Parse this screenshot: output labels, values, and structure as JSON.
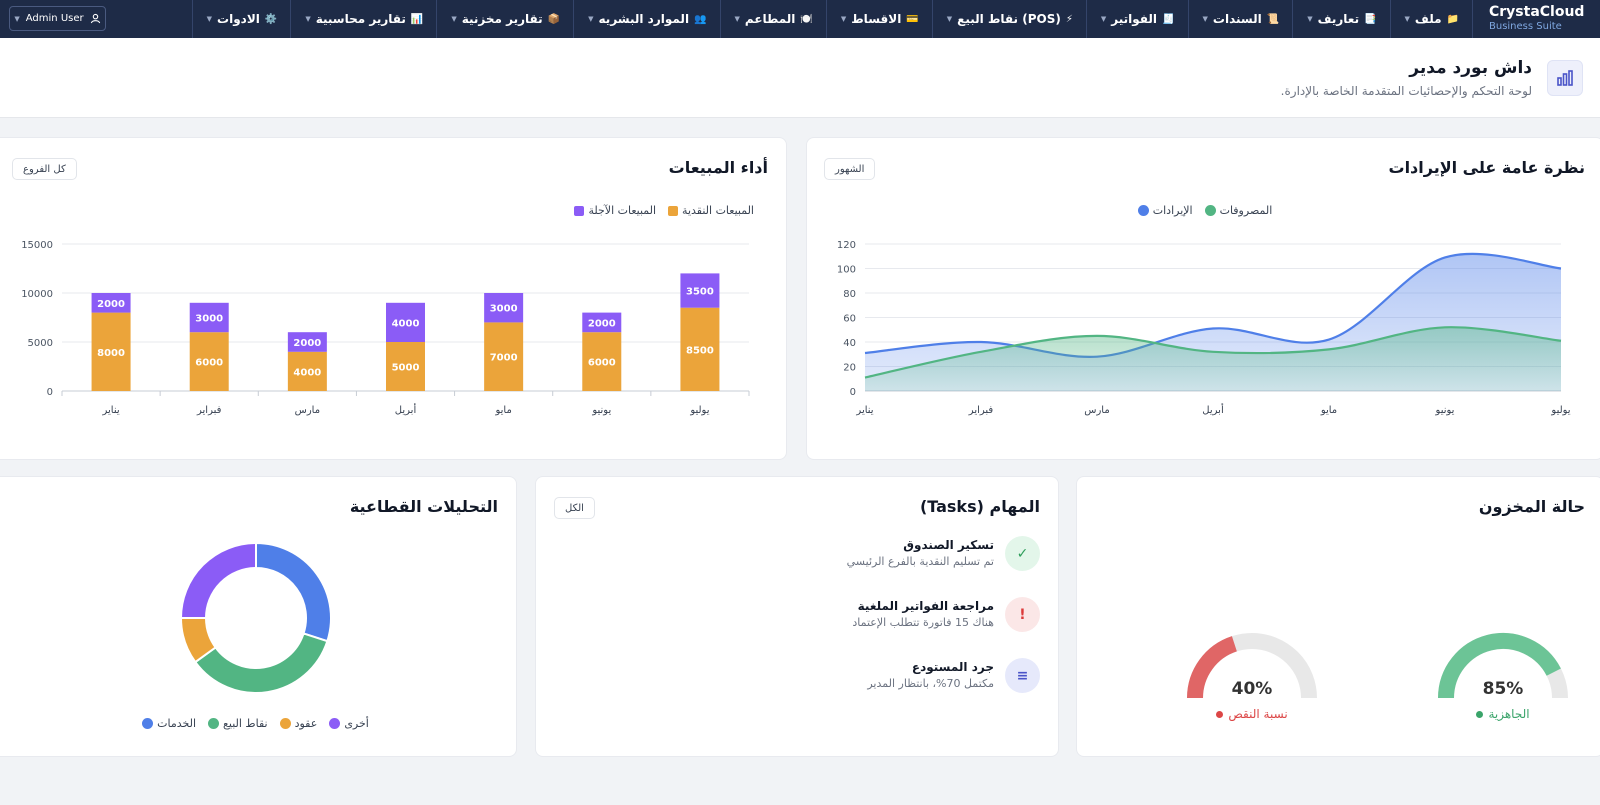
{
  "brand": {
    "name": "CrystaCloud",
    "sub": "Business Suite"
  },
  "menu": [
    {
      "label": "ملف",
      "icon": "📁",
      "icon_name": "folder-icon"
    },
    {
      "label": "تعاريف",
      "icon": "📑",
      "icon_name": "definitions-icon"
    },
    {
      "label": "السندات",
      "icon": "📜",
      "icon_name": "vouchers-icon"
    },
    {
      "label": "الفواتير",
      "icon": "🧾",
      "icon_name": "invoices-icon"
    },
    {
      "label": "نقاط البيع (POS)",
      "icon": "⚡",
      "icon_name": "pos-icon"
    },
    {
      "label": "الاقساط",
      "icon": "💳",
      "icon_name": "installments-icon"
    },
    {
      "label": "المطاعم",
      "icon": "🍽️",
      "icon_name": "restaurants-icon"
    },
    {
      "label": "الموارد البشريه",
      "icon": "👥",
      "icon_name": "hr-icon"
    },
    {
      "label": "تقارير مخزنية",
      "icon": "📦",
      "icon_name": "inventory-reports-icon"
    },
    {
      "label": "تقارير محاسبية",
      "icon": "📊",
      "icon_name": "accounting-reports-icon"
    },
    {
      "label": "الادوات",
      "icon": "⚙️",
      "icon_name": "tools-icon"
    }
  ],
  "user": {
    "label": "Admin User"
  },
  "header": {
    "title": "داش بورد مدير",
    "subtitle": "لوحة التحكم والإحصائيات المتقدمة الخاصة بالإدارة."
  },
  "revenue_card": {
    "title": "نظرة عامة على الإيرادات",
    "filter": "الشهور",
    "legend": [
      {
        "label": "الإيرادات",
        "color": "#4f7fe8"
      },
      {
        "label": "المصروفات",
        "color": "#52b583"
      }
    ]
  },
  "sales_card": {
    "title": "أداء المبيعات",
    "filter": "كل الفروع",
    "legend": [
      {
        "label": "المبيعات الآجلة",
        "color": "#8b5cf6"
      },
      {
        "label": "المبيعات النقدية",
        "color": "#eba43a"
      }
    ]
  },
  "inventory_card": {
    "title": "حالة المخزون",
    "gauges": [
      {
        "value": 85,
        "display": "85%",
        "label": "الجاهزية",
        "color": "#6cc496",
        "label_color": "#3aa46a"
      },
      {
        "value": 40,
        "display": "40%",
        "label": "نسبة النقص",
        "color": "#e06666",
        "label_color": "#dc4646"
      }
    ]
  },
  "tasks_card": {
    "title": "المهام (Tasks)",
    "filter": "الكل",
    "tasks": [
      {
        "title": "تسكير الصندوق",
        "desc": "تم تسليم النقدية بالفرع الرئيسي",
        "icon": "✓",
        "icon_name": "check-icon",
        "bg": "#e3f6ea",
        "fg": "#2f9e5b"
      },
      {
        "title": "مراجعة الفواتير الملغية",
        "desc": "هناك 15 فاتورة تتطلب الإعتماد",
        "icon": "!",
        "icon_name": "alert-icon",
        "bg": "#fbe7e7",
        "fg": "#dc3b3b"
      },
      {
        "title": "جرد المستودع",
        "desc": "مكتمل 70%، بانتظار المدير",
        "icon": "≡",
        "icon_name": "list-icon",
        "bg": "#e6e9fb",
        "fg": "#4a54c8"
      }
    ]
  },
  "sector_card": {
    "title": "التحليلات القطاعية"
  },
  "chart_data": [
    {
      "type": "area",
      "categories": [
        "يناير",
        "فبراير",
        "مارس",
        "أبريل",
        "مايو",
        "يونيو",
        "يوليو"
      ],
      "series": [
        {
          "name": "الإيرادات",
          "values": [
            31,
            40,
            28,
            51,
            42,
            109,
            100
          ],
          "color": "#4f7fe8"
        },
        {
          "name": "المصروفات",
          "values": [
            11,
            32,
            45,
            32,
            34,
            52,
            41
          ],
          "color": "#52b583"
        }
      ],
      "ylim": [
        0,
        120
      ],
      "yticks": [
        0,
        20,
        40,
        60,
        80,
        100,
        120
      ],
      "grid": true,
      "legend": "top-center"
    },
    {
      "type": "bar",
      "stacked": true,
      "categories": [
        "يناير",
        "فبراير",
        "مارس",
        "أبريل",
        "مايو",
        "يونيو",
        "يوليو"
      ],
      "series": [
        {
          "name": "المبيعات النقدية",
          "values": [
            8000,
            6000,
            4000,
            5000,
            7000,
            6000,
            8500
          ],
          "color": "#eba43a"
        },
        {
          "name": "المبيعات الآجلة",
          "values": [
            2000,
            3000,
            2000,
            4000,
            3000,
            2000,
            3500
          ],
          "color": "#8b5cf6"
        }
      ],
      "ylim": [
        0,
        15000
      ],
      "yticks": [
        0,
        5000,
        10000,
        15000
      ],
      "grid": true,
      "legend": "top-right"
    },
    {
      "type": "pie",
      "donut": true,
      "categories": [
        "الخدمات",
        "نقاط البيع",
        "عقود",
        "أخرى"
      ],
      "values": [
        30,
        35,
        10,
        25
      ],
      "colors": [
        "#4f7fe8",
        "#52b583",
        "#eba43a",
        "#8b5cf6"
      ],
      "legend": "bottom"
    }
  ]
}
